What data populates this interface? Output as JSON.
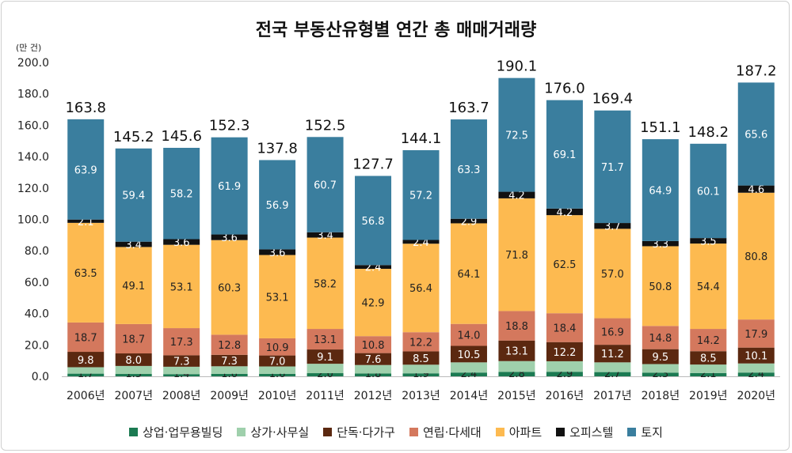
{
  "chart_data": {
    "type": "bar",
    "stacked": true,
    "title": "전국 부동산유형별 연간 총 매매거래량",
    "unit_label": "(만 건)",
    "xlabel": "",
    "ylabel": "",
    "ylim": [
      0,
      200
    ],
    "yticks": [
      "0.0",
      "20.0",
      "40.0",
      "60.0",
      "80.0",
      "100.0",
      "120.0",
      "140.0",
      "160.0",
      "180.0",
      "200.0"
    ],
    "grid": false,
    "legend_position": "bottom",
    "categories": [
      "2006년",
      "2007년",
      "2008년",
      "2009년",
      "2010년",
      "2011년",
      "2012년",
      "2013년",
      "2014년",
      "2015년",
      "2016년",
      "2017년",
      "2018년",
      "2019년",
      "2020년"
    ],
    "totals": [
      163.8,
      145.2,
      145.6,
      152.3,
      137.8,
      152.5,
      127.7,
      144.1,
      163.7,
      190.1,
      176.0,
      169.4,
      151.1,
      148.2,
      187.2
    ],
    "series": [
      {
        "name": "상업·업무용빌딩",
        "color": "#1b7a52",
        "labeled": true,
        "values": [
          1.7,
          1.5,
          1.4,
          1.6,
          1.6,
          2.0,
          1.8,
          1.9,
          2.4,
          2.8,
          2.9,
          2.7,
          2.3,
          2.1,
          2.4
        ]
      },
      {
        "name": "상가·사무실",
        "color": "#9fd0ac",
        "labeled": false,
        "values": [
          4.1,
          5.1,
          4.7,
          4.8,
          4.7,
          6.0,
          5.4,
          5.5,
          6.5,
          6.9,
          6.7,
          6.2,
          5.5,
          5.4,
          5.8
        ]
      },
      {
        "name": "단독·다가구",
        "color": "#5b2810",
        "labeled": true,
        "label_color": "#ffffff",
        "values": [
          9.8,
          8.0,
          7.3,
          7.3,
          7.0,
          9.1,
          7.6,
          8.5,
          10.5,
          13.1,
          12.2,
          11.2,
          9.5,
          8.5,
          10.1
        ]
      },
      {
        "name": "연립·다세대",
        "color": "#d4785d",
        "labeled": true,
        "values": [
          18.7,
          18.7,
          17.3,
          12.8,
          10.9,
          13.1,
          10.8,
          12.2,
          14.0,
          18.8,
          18.4,
          16.9,
          14.8,
          14.2,
          17.9
        ]
      },
      {
        "name": "아파트",
        "color": "#fdba50",
        "labeled": true,
        "values": [
          63.5,
          49.1,
          53.1,
          60.3,
          53.1,
          58.2,
          42.9,
          56.4,
          64.1,
          71.8,
          62.5,
          57.0,
          50.8,
          54.4,
          80.8
        ]
      },
      {
        "name": "오피스텔",
        "color": "#111111",
        "labeled": true,
        "label_color": "#ffffff",
        "values": [
          2.1,
          3.4,
          3.6,
          3.6,
          3.6,
          3.4,
          2.4,
          2.4,
          2.9,
          4.2,
          4.2,
          3.7,
          3.3,
          3.5,
          4.6
        ]
      },
      {
        "name": "토지",
        "color": "#3a7e9e",
        "labeled": true,
        "label_color": "#ffffff",
        "values": [
          63.9,
          59.4,
          58.2,
          61.9,
          56.9,
          60.7,
          56.8,
          57.2,
          63.3,
          72.5,
          69.1,
          71.7,
          64.9,
          60.1,
          65.6
        ]
      }
    ]
  }
}
